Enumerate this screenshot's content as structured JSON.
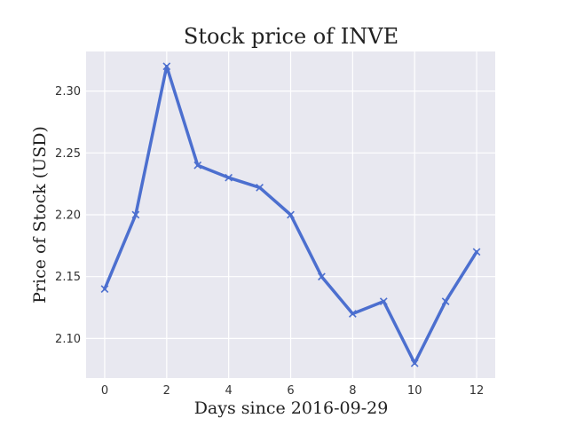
{
  "chart_data": {
    "type": "line",
    "title": "Stock price of INVE",
    "xlabel": "Days since 2016-09-29",
    "ylabel": "Price of Stock (USD)",
    "x": [
      0,
      1,
      2,
      3,
      4,
      5,
      6,
      7,
      8,
      9,
      10,
      11,
      12
    ],
    "series": [
      {
        "values": [
          2.14,
          2.2,
          2.32,
          2.24,
          2.23,
          2.222,
          2.2,
          2.15,
          2.12,
          2.13,
          2.08,
          2.13,
          2.17
        ],
        "color": "#4c6fcf",
        "marker": "x"
      }
    ],
    "xlim": [
      -0.6,
      12.6
    ],
    "ylim": [
      2.068,
      2.332
    ],
    "xticks": [
      "0",
      "2",
      "4",
      "6",
      "8",
      "10",
      "12"
    ],
    "yticks": [
      "2.10",
      "2.15",
      "2.20",
      "2.25",
      "2.30"
    ],
    "grid": true,
    "plot_background": "#e8e8f0"
  }
}
